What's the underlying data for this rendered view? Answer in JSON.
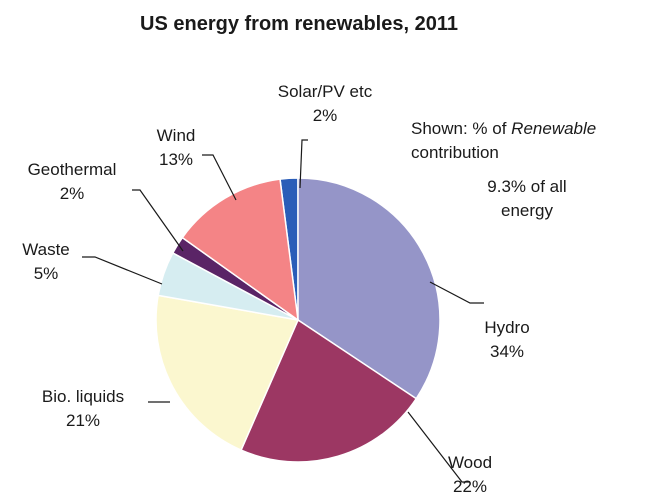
{
  "chart_data": {
    "type": "pie",
    "title": "US energy from renewables, 2011",
    "slices": [
      {
        "name": "Solar/PV etc",
        "pct_label": "2%",
        "value": 2,
        "color": "#2a5db8"
      },
      {
        "name": "Hydro",
        "pct_label": "34%",
        "value": 34,
        "color": "#9595c8"
      },
      {
        "name": "Wood",
        "pct_label": "22%",
        "value": 22,
        "color": "#9c3763"
      },
      {
        "name": "Bio. liquids",
        "pct_label": "21%",
        "value": 21,
        "color": "#fbf7cf"
      },
      {
        "name": "Waste",
        "pct_label": "5%",
        "value": 5,
        "color": "#d6edf1"
      },
      {
        "name": "Geothermal",
        "pct_label": "2%",
        "value": 2,
        "color": "#5a2466"
      },
      {
        "name": "Wind",
        "pct_label": "13%",
        "value": 13,
        "color": "#f48486"
      }
    ],
    "annotations": {
      "note_prefix": "Shown: % of ",
      "note_italic": "Renewable",
      "note_line2": "contribution",
      "total_line1": "9.3% of all",
      "total_line2": "energy"
    }
  }
}
